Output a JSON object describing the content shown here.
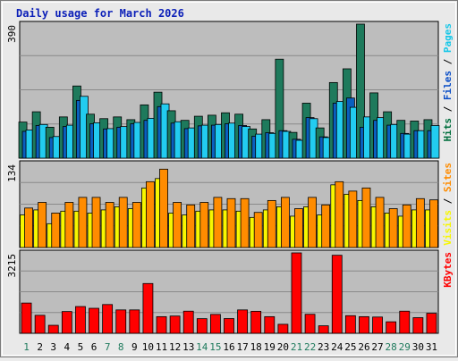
{
  "chart_data": {
    "type": "bar",
    "title": "Daily usage for March 2026",
    "categories": [
      "1",
      "2",
      "3",
      "4",
      "5",
      "6",
      "7",
      "8",
      "9",
      "10",
      "11",
      "12",
      "13",
      "14",
      "15",
      "16",
      "17",
      "18",
      "19",
      "20",
      "21",
      "22",
      "23",
      "24",
      "25",
      "26",
      "27",
      "28",
      "29",
      "30",
      "31"
    ],
    "weekend_days": [
      "1",
      "7",
      "8",
      "14",
      "15",
      "21",
      "22",
      "28",
      "29"
    ],
    "panels": [
      {
        "id": "hits",
        "ymax_label": "390",
        "ylim": [
          0,
          390
        ],
        "right_labels": [
          {
            "text": "Hits",
            "color": "#006f3d"
          },
          {
            "text": " / ",
            "color": "#000000"
          },
          {
            "text": "Files",
            "color": "#0a4ec7"
          },
          {
            "text": " / ",
            "color": "#000000"
          },
          {
            "text": "Pages",
            "color": "#16c7e8"
          }
        ],
        "series": [
          {
            "name": "Hits",
            "color": "#1e7a5c",
            "values": [
              105,
              135,
              90,
              120,
              210,
              128,
              115,
              120,
              112,
              155,
              192,
              138,
              110,
              122,
              125,
              132,
              128,
              85,
              112,
              288,
              75,
              160,
              88,
              220,
              260,
              390,
              190,
              135,
              110,
              108,
              112
            ]
          },
          {
            "name": "Files",
            "color": "#0a5fbf",
            "values": [
              78,
              95,
              60,
              92,
              168,
              100,
              85,
              90,
              100,
              110,
              150,
              102,
              86,
              94,
              96,
              100,
              95,
              64,
              74,
              80,
              55,
              118,
              62,
              160,
              175,
              90,
              110,
              96,
              72,
              80,
              80
            ]
          },
          {
            "name": "Pages",
            "color": "#22ccf0",
            "values": [
              82,
              98,
              63,
              96,
              180,
              103,
              86,
              92,
              104,
              116,
              158,
              106,
              88,
              96,
              98,
              102,
              92,
              70,
              72,
              78,
              52,
              115,
              60,
              165,
              148,
              120,
              118,
              98,
              70,
              80,
              95
            ]
          }
        ]
      },
      {
        "id": "visits",
        "ymax_label": "134",
        "ylim": [
          0,
          134
        ],
        "right_labels": [
          {
            "text": "Visits",
            "color": "#f7f700"
          },
          {
            "text": " / ",
            "color": "#000000"
          },
          {
            "text": "Sites",
            "color": "#ff8c00"
          }
        ],
        "series": [
          {
            "name": "Visits",
            "color": "#f7f700",
            "values": [
              52,
              60,
              38,
              58,
              58,
              55,
              60,
              65,
              62,
              95,
              110,
              55,
              52,
              58,
              60,
              60,
              58,
              48,
              60,
              65,
              50,
              65,
              52,
              100,
              85,
              75,
              65,
              55,
              50,
              60,
              60
            ]
          },
          {
            "name": "Sites",
            "color": "#ff8c00",
            "values": [
              63,
              72,
              55,
              72,
              80,
              80,
              72,
              80,
              72,
              105,
              125,
              72,
              68,
              72,
              80,
              78,
              78,
              56,
              75,
              80,
              62,
              80,
              68,
              105,
              90,
              95,
              80,
              62,
              68,
              78,
              76
            ]
          }
        ]
      },
      {
        "id": "kbytes",
        "ymax_label": "3215",
        "ylim": [
          0,
          3215
        ],
        "right_labels": [
          {
            "text": "KBytes",
            "color": "#ff0000"
          }
        ],
        "series": [
          {
            "name": "KBytes",
            "color": "#ff0000",
            "values": [
              1210,
              720,
              320,
              870,
              1070,
              1000,
              1150,
              935,
              935,
              1990,
              665,
              690,
              885,
              585,
              755,
              590,
              935,
              880,
              665,
              360,
              3215,
              760,
              300,
              3120,
              705,
              665,
              650,
              460,
              885,
              625,
              800
            ]
          }
        ]
      }
    ]
  }
}
